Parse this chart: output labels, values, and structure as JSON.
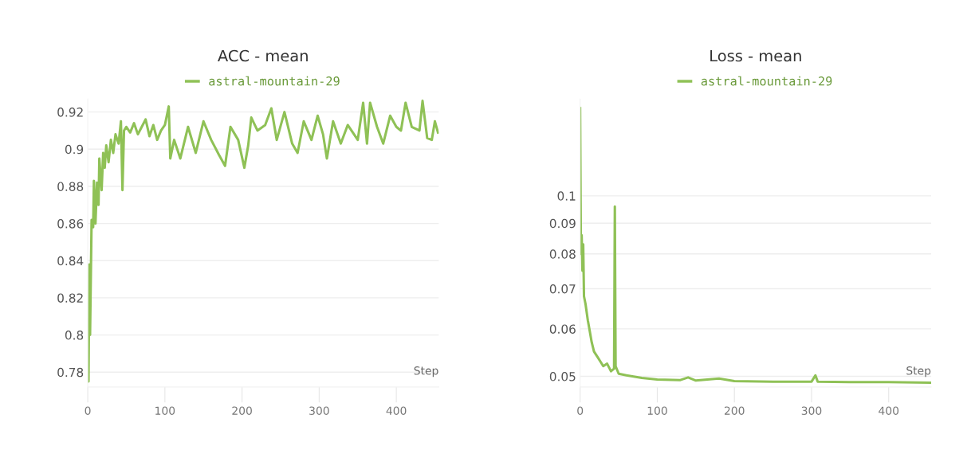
{
  "chart_data": [
    {
      "type": "line",
      "title": "ACC - mean",
      "xlabel": "Step",
      "legend": "top",
      "grid": "y",
      "xlim": [
        0,
        455
      ],
      "xticks": [
        0,
        100,
        200,
        300,
        400
      ],
      "ylim": [
        0.772,
        0.927
      ],
      "yticks": [
        0.78,
        0.8,
        0.82,
        0.84,
        0.86,
        0.88,
        0.9,
        0.92
      ],
      "series": [
        {
          "name": "astral-mountain-29",
          "color": "#8fc156",
          "x": [
            0,
            1,
            2,
            3,
            5,
            7,
            8,
            10,
            12,
            14,
            15,
            18,
            20,
            22,
            24,
            27,
            30,
            33,
            36,
            40,
            43,
            45,
            47,
            50,
            55,
            60,
            65,
            70,
            75,
            80,
            85,
            90,
            95,
            100,
            105,
            107,
            112,
            120,
            130,
            140,
            150,
            160,
            170,
            178,
            185,
            195,
            203,
            208,
            212,
            220,
            230,
            238,
            245,
            255,
            265,
            272,
            280,
            290,
            298,
            305,
            310,
            318,
            328,
            337,
            350,
            357,
            362,
            366,
            375,
            383,
            392,
            400,
            406,
            412,
            420,
            430,
            434,
            440,
            446,
            450,
            454
          ],
          "values": [
            0.796,
            0.775,
            0.838,
            0.8,
            0.862,
            0.858,
            0.883,
            0.86,
            0.882,
            0.87,
            0.895,
            0.878,
            0.898,
            0.89,
            0.902,
            0.893,
            0.905,
            0.898,
            0.908,
            0.903,
            0.915,
            0.878,
            0.91,
            0.912,
            0.909,
            0.914,
            0.908,
            0.912,
            0.916,
            0.907,
            0.913,
            0.905,
            0.91,
            0.913,
            0.923,
            0.895,
            0.905,
            0.895,
            0.912,
            0.898,
            0.915,
            0.905,
            0.897,
            0.891,
            0.912,
            0.905,
            0.89,
            0.902,
            0.917,
            0.91,
            0.913,
            0.922,
            0.905,
            0.92,
            0.903,
            0.898,
            0.915,
            0.905,
            0.918,
            0.908,
            0.895,
            0.915,
            0.903,
            0.913,
            0.905,
            0.925,
            0.903,
            0.925,
            0.912,
            0.903,
            0.918,
            0.912,
            0.91,
            0.925,
            0.912,
            0.91,
            0.926,
            0.906,
            0.905,
            0.915,
            0.909
          ]
        }
      ]
    },
    {
      "type": "line",
      "title": "Loss - mean",
      "xlabel": "Step",
      "legend": "top",
      "grid": "y",
      "log": "y",
      "xlim": [
        0,
        455
      ],
      "xticks": [
        0,
        100,
        200,
        300,
        400
      ],
      "ylim": [
        0.048,
        0.145
      ],
      "yticks": [
        0.05,
        0.06,
        0.07,
        0.08,
        0.09,
        0.1
      ],
      "series": [
        {
          "name": "astral-mountain-29",
          "color": "#8fc156",
          "x": [
            0,
            1,
            2,
            3,
            4,
            5,
            7,
            10,
            12,
            15,
            18,
            22,
            26,
            30,
            35,
            40,
            44,
            45,
            46,
            50,
            60,
            80,
            100,
            130,
            140,
            150,
            180,
            200,
            250,
            300,
            305,
            308,
            350,
            400,
            454
          ],
          "values": [
            0.14,
            0.08,
            0.086,
            0.075,
            0.083,
            0.068,
            0.066,
            0.062,
            0.06,
            0.057,
            0.055,
            0.054,
            0.053,
            0.052,
            0.0525,
            0.051,
            0.0515,
            0.096,
            0.052,
            0.0505,
            0.0502,
            0.0497,
            0.0494,
            0.0493,
            0.0498,
            0.0492,
            0.0496,
            0.0491,
            0.049,
            0.049,
            0.0502,
            0.049,
            0.0489,
            0.0489,
            0.0488
          ]
        }
      ]
    }
  ]
}
